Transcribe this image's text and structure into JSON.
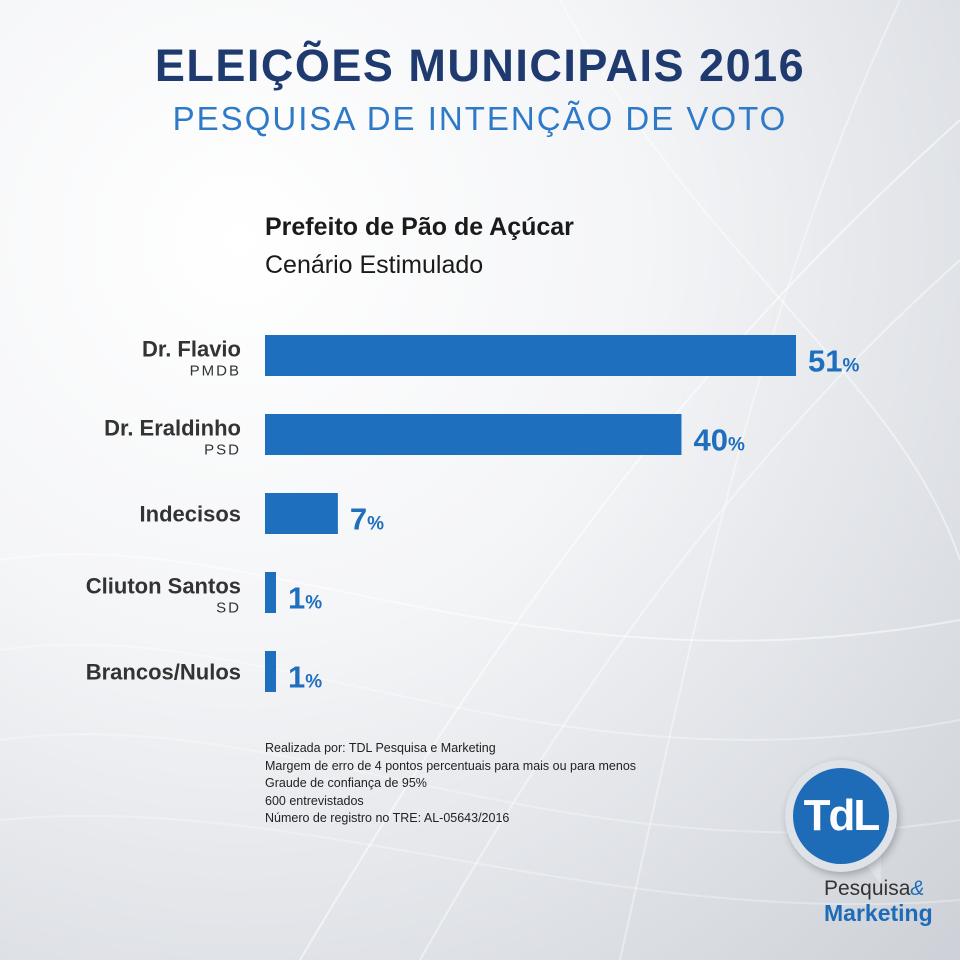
{
  "header": {
    "title": "ELEIÇÕES MUNICIPAIS 2016",
    "subtitle": "PESQUISA DE INTENÇÃO DE VOTO"
  },
  "chart_data": {
    "type": "bar",
    "orientation": "horizontal",
    "title": "Prefeito de Pão de Açúcar",
    "subtitle": "Cenário Estimulado",
    "categories": [
      "Dr. Flavio",
      "Dr. Eraldinho",
      "Indecisos",
      "Cliuton Santos",
      "Brancos/Nulos"
    ],
    "parties": [
      "PMDB",
      "PSD",
      "",
      "SD",
      ""
    ],
    "values": [
      51,
      40,
      7,
      1,
      1
    ],
    "value_labels": [
      "51",
      "40",
      "7",
      "1",
      "1"
    ],
    "unit": "%",
    "xlim": [
      0,
      51
    ],
    "grid": false,
    "bar_color": "#1f6fbf"
  },
  "footer": {
    "lines": [
      "Realizada por: TDL Pesquisa e Marketing",
      "Margem de erro de 4 pontos percentuais para mais ou para menos",
      "Graude de confiança de 95%",
      "600 entrevistados",
      "Número de registro no TRE: AL-05643/2016"
    ]
  },
  "logo": {
    "mark": "TdL",
    "line1_a": "Pesquisa",
    "line1_b": "&",
    "line2": "Marketing",
    "color": "#1e6cb8"
  }
}
